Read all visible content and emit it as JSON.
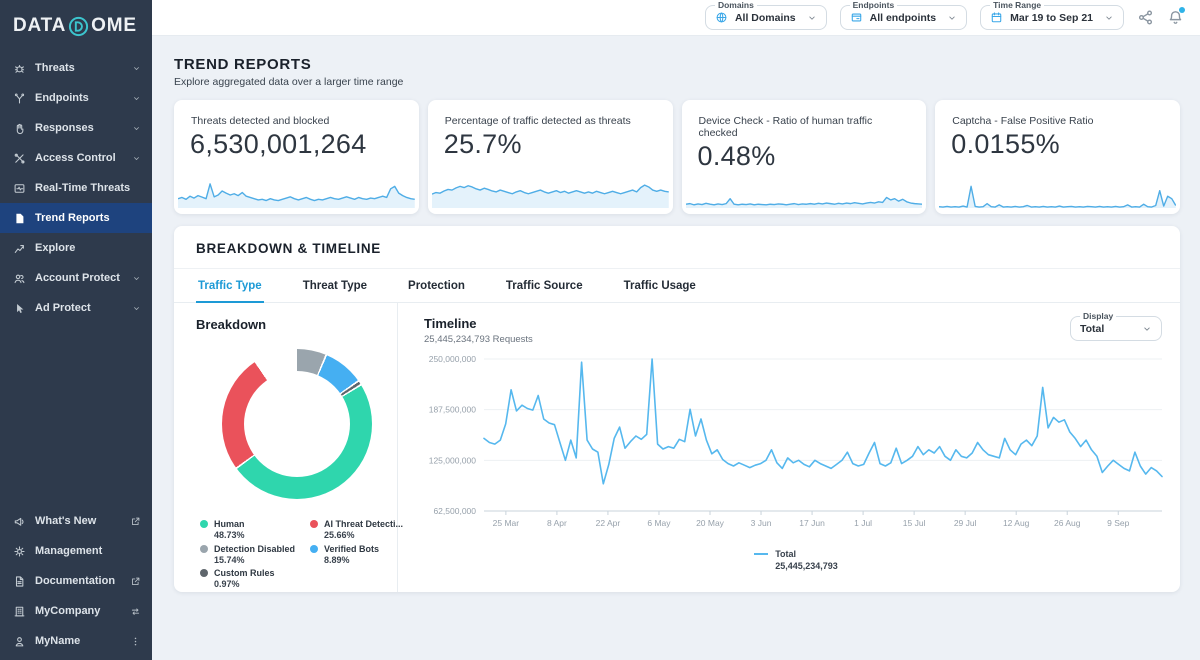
{
  "brand": {
    "wordmark_pre": "DATA",
    "wordmark_post": "OME",
    "accent": "#3cc5ce"
  },
  "sidebar": {
    "items": [
      {
        "label": "Threats",
        "icon": "threats-icon",
        "expandable": true,
        "active": false
      },
      {
        "label": "Endpoints",
        "icon": "endpoints-icon",
        "expandable": true,
        "active": false
      },
      {
        "label": "Responses",
        "icon": "responses-icon",
        "expandable": true,
        "active": false
      },
      {
        "label": "Access Control",
        "icon": "access-control-icon",
        "expandable": true,
        "active": false
      },
      {
        "label": "Real-Time Threats",
        "icon": "real-time-threats-icon",
        "expandable": false,
        "active": false
      },
      {
        "label": "Trend Reports",
        "icon": "trend-reports-icon",
        "expandable": false,
        "active": true
      },
      {
        "label": "Explore",
        "icon": "explore-icon",
        "expandable": false,
        "active": false
      },
      {
        "label": "Account Protect",
        "icon": "account-protect-icon",
        "expandable": true,
        "active": false
      },
      {
        "label": "Ad Protect",
        "icon": "ad-protect-icon",
        "expandable": true,
        "active": false
      }
    ],
    "footer_items": [
      {
        "label": "What's New",
        "icon": "whats-new-icon",
        "trailing": "external-link-icon"
      },
      {
        "label": "Management",
        "icon": "management-icon",
        "trailing": null
      },
      {
        "label": "Documentation",
        "icon": "documentation-icon",
        "trailing": "external-link-icon"
      },
      {
        "label": "MyCompany",
        "icon": "company-icon",
        "trailing": "switch-icon"
      },
      {
        "label": "MyName",
        "icon": "user-icon",
        "trailing": "kebab-icon"
      }
    ]
  },
  "topbar": {
    "filters": [
      {
        "label": "Domains",
        "value": "All Domains",
        "icon": "globe-icon"
      },
      {
        "label": "Endpoints",
        "value": "All endpoints",
        "icon": "endpoints-window-icon"
      },
      {
        "label": "Time Range",
        "value": "Mar 19 to Sep 21",
        "icon": "calendar-icon"
      }
    ],
    "actions": [
      {
        "name": "share-icon",
        "badge": false
      },
      {
        "name": "notifications-icon",
        "badge": true
      }
    ],
    "badge_color": "#2fb3e8"
  },
  "page": {
    "title": "TREND REPORTS",
    "subtitle": "Explore aggregated data over a larger time range"
  },
  "kpis": [
    {
      "label": "Threats detected and blocked",
      "value": "6,530,001,264"
    },
    {
      "label": "Percentage of traffic detected as threats",
      "value": "25.7%"
    },
    {
      "label": "Device Check - Ratio of human traffic checked",
      "value": "0.48%"
    },
    {
      "label": "Captcha - False Positive Ratio",
      "value": "0.0155%"
    }
  ],
  "section": {
    "title": "BREAKDOWN & TIMELINE",
    "tabs": [
      {
        "label": "Traffic Type",
        "active": true
      },
      {
        "label": "Threat Type",
        "active": false
      },
      {
        "label": "Protection",
        "active": false
      },
      {
        "label": "Traffic Source",
        "active": false
      },
      {
        "label": "Traffic Usage",
        "active": false
      }
    ],
    "breakdown_title": "Breakdown",
    "timeline": {
      "title": "Timeline",
      "subtitle": "25,445,234,793 Requests",
      "display_label": "Display",
      "display_value": "Total",
      "legend_label": "Total",
      "legend_value": "25,445,234,793"
    }
  },
  "chart_data": [
    {
      "type": "pie",
      "title": "Breakdown",
      "donut": true,
      "start_angle_deg": -33,
      "draw_order": [
        2,
        3,
        4,
        0,
        1
      ],
      "segments": [
        {
          "label": "Human",
          "value": 48.73,
          "color": "#2fd6ad"
        },
        {
          "label": "AI Threat Detecti...",
          "value": 25.66,
          "color": "#ea525b"
        },
        {
          "label": "Detection Disabled",
          "value": 15.74,
          "color": "#9aa5ad"
        },
        {
          "label": "Verified Bots",
          "value": 8.89,
          "color": "#45aff2"
        },
        {
          "label": "Custom Rules",
          "value": 0.97,
          "color": "#5f666c"
        }
      ]
    },
    {
      "type": "line",
      "title": "Timeline",
      "ylabel": "Requests",
      "ylim_millions": [
        62.5,
        250
      ],
      "yticks": [
        "250,000,000",
        "187,500,000",
        "125,000,000",
        "62,500,000"
      ],
      "xticks": [
        "25 Mar",
        "8 Apr",
        "22 Apr",
        "6 May",
        "20 May",
        "3 Jun",
        "17 Jun",
        "1 Jul",
        "15 Jul",
        "29 Jul",
        "12 Aug",
        "26 Aug",
        "9 Sep"
      ],
      "grid": true,
      "legend_position": "bottom",
      "series": [
        {
          "name": "Total",
          "total": "25,445,234,793",
          "color": "#56b8ee",
          "values_millions": [
            152,
            147,
            145,
            150,
            170,
            212,
            186,
            193,
            189,
            187,
            205,
            176,
            171,
            169,
            147,
            125,
            150,
            128,
            246,
            150,
            139,
            135,
            96,
            120,
            152,
            166,
            140,
            148,
            155,
            151,
            157,
            250,
            145,
            139,
            142,
            140,
            151,
            148,
            188,
            155,
            176,
            150,
            133,
            138,
            126,
            121,
            118,
            122,
            119,
            116,
            119,
            121,
            125,
            138,
            122,
            115,
            128,
            122,
            125,
            120,
            117,
            125,
            121,
            118,
            115,
            120,
            125,
            135,
            121,
            118,
            120,
            134,
            147,
            121,
            118,
            122,
            140,
            121,
            125,
            130,
            142,
            132,
            138,
            134,
            142,
            130,
            125,
            138,
            130,
            128,
            134,
            147,
            138,
            132,
            130,
            128,
            152,
            138,
            132,
            145,
            150,
            143,
            155,
            215,
            165,
            178,
            172,
            175,
            160,
            152,
            142,
            150,
            138,
            130,
            110,
            118,
            125,
            120,
            115,
            112,
            135,
            118,
            108,
            116,
            112,
            105
          ]
        }
      ]
    },
    {
      "type": "sparklines",
      "color": "#4fade6",
      "fill": "rgba(130,195,235,0.22)",
      "series": [
        {
          "kpi": "Threats detected and blocked",
          "values": [
            30,
            34,
            28,
            38,
            32,
            40,
            35,
            30,
            78,
            36,
            42,
            55,
            48,
            42,
            46,
            40,
            50,
            38,
            34,
            30,
            26,
            28,
            24,
            30,
            26,
            24,
            28,
            32,
            36,
            30,
            26,
            30,
            34,
            28,
            24,
            28,
            26,
            30,
            34,
            30,
            28,
            32,
            36,
            32,
            28,
            34,
            30,
            28,
            32,
            30,
            34,
            38,
            34,
            62,
            70,
            48,
            40,
            34,
            30,
            28
          ]
        },
        {
          "kpi": "Percentage of traffic detected as threats",
          "values": [
            45,
            50,
            48,
            55,
            60,
            58,
            65,
            70,
            66,
            72,
            68,
            62,
            58,
            64,
            60,
            55,
            52,
            58,
            54,
            50,
            46,
            52,
            56,
            50,
            46,
            50,
            54,
            58,
            52,
            48,
            52,
            56,
            50,
            54,
            48,
            52,
            56,
            52,
            48,
            52,
            48,
            54,
            50,
            46,
            50,
            54,
            50,
            46,
            50,
            54,
            58,
            52,
            66,
            74,
            68,
            58,
            54,
            58,
            54,
            52
          ]
        },
        {
          "kpi": "Device Check - Ratio of human traffic checked",
          "values": [
            12,
            14,
            10,
            13,
            11,
            15,
            12,
            10,
            13,
            11,
            14,
            30,
            12,
            10,
            12,
            11,
            13,
            10,
            12,
            11,
            10,
            12,
            11,
            13,
            12,
            10,
            12,
            14,
            11,
            13,
            12,
            14,
            12,
            15,
            13,
            16,
            14,
            12,
            15,
            13,
            16,
            14,
            17,
            15,
            13,
            16,
            18,
            16,
            20,
            18,
            34,
            26,
            30,
            22,
            28,
            20,
            16,
            14,
            13,
            12
          ]
        },
        {
          "kpi": "Captcha - False Positive Ratio",
          "values": [
            4,
            3,
            5,
            3,
            4,
            3,
            6,
            3,
            70,
            5,
            3,
            4,
            14,
            4,
            3,
            10,
            3,
            4,
            3,
            5,
            3,
            4,
            8,
            3,
            4,
            3,
            5,
            3,
            4,
            3,
            6,
            3,
            4,
            5,
            3,
            4,
            3,
            5,
            4,
            3,
            5,
            3,
            4,
            3,
            5,
            3,
            4,
            10,
            3,
            4,
            3,
            12,
            4,
            3,
            8,
            56,
            6,
            38,
            30,
            8
          ]
        }
      ]
    }
  ]
}
